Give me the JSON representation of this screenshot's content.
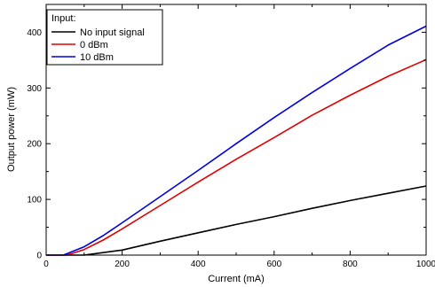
{
  "chart_data": {
    "type": "line",
    "title": "",
    "xlabel": "Current (mA)",
    "ylabel": "Output power (mW)",
    "xlim": [
      0,
      1000
    ],
    "ylim": [
      0,
      450
    ],
    "xticks": [
      0,
      200,
      400,
      600,
      800,
      1000
    ],
    "yticks": [
      0,
      100,
      200,
      300,
      400
    ],
    "grid": false,
    "legend": {
      "title": "Input:",
      "placement": "top-left"
    },
    "series": [
      {
        "name": "No input signal",
        "color": "#000000",
        "x": [
          0,
          100,
          110,
          200,
          300,
          400,
          500,
          600,
          700,
          800,
          900,
          1000
        ],
        "y": [
          0,
          0,
          1,
          9,
          25,
          40,
          55,
          69,
          84,
          98,
          111,
          124
        ]
      },
      {
        "name": "0 dBm",
        "color": "#e00000",
        "x": [
          0,
          55,
          100,
          150,
          200,
          300,
          400,
          500,
          600,
          700,
          800,
          900,
          1000
        ],
        "y": [
          0,
          0,
          10,
          27,
          47,
          89,
          131,
          172,
          211,
          251,
          287,
          321,
          351
        ]
      },
      {
        "name": "10 dBm",
        "color": "#0000e0",
        "x": [
          0,
          45,
          100,
          150,
          200,
          300,
          400,
          500,
          600,
          700,
          800,
          900,
          1000
        ],
        "y": [
          0,
          0,
          15,
          35,
          58,
          105,
          152,
          200,
          247,
          292,
          335,
          377,
          411
        ]
      }
    ]
  }
}
